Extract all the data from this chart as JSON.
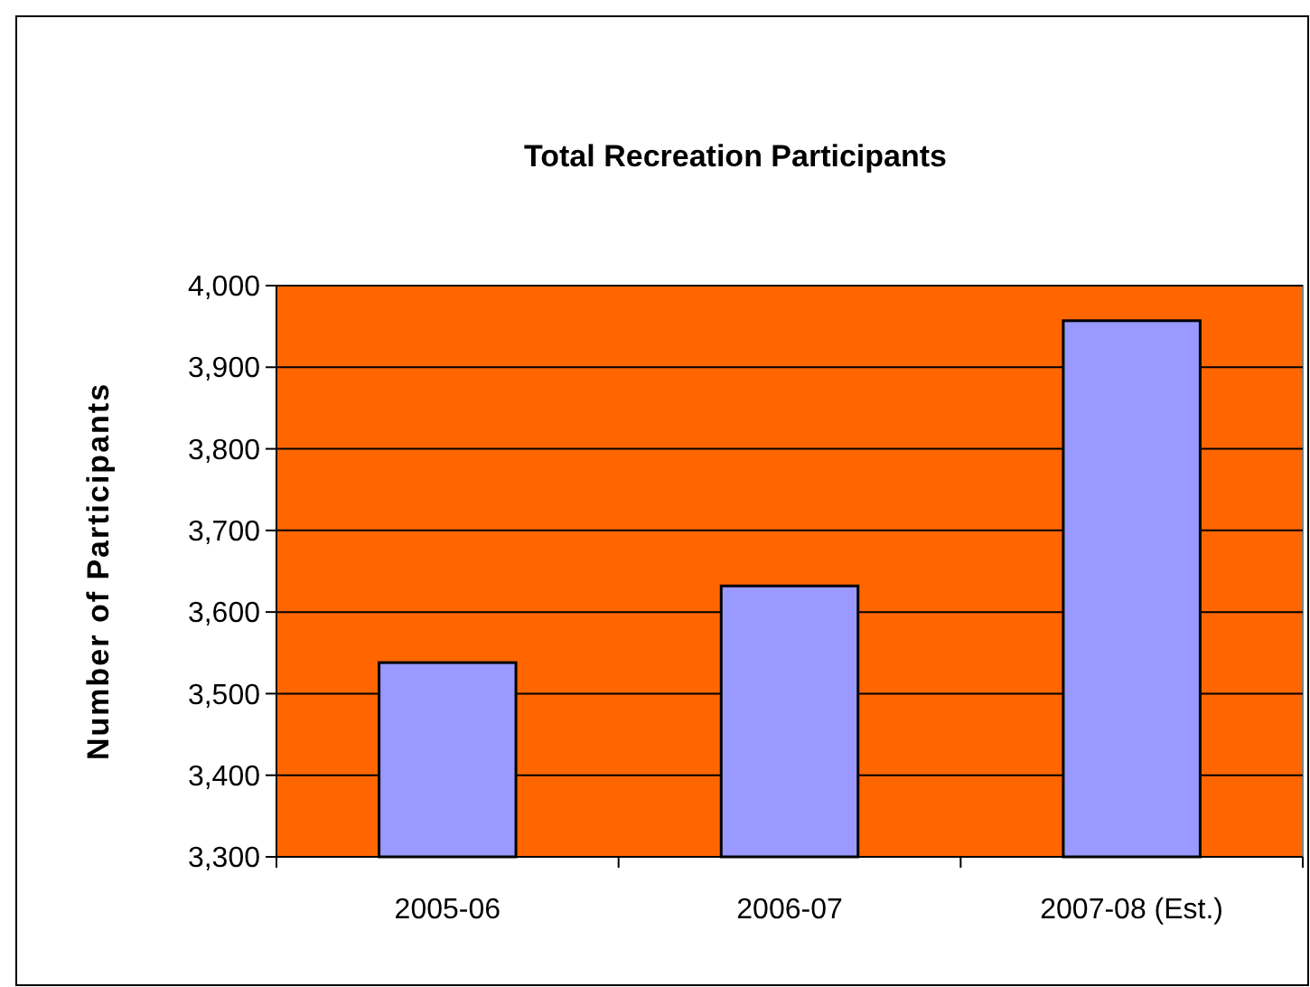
{
  "chart_data": {
    "type": "bar",
    "title": "Total Recreation Participants",
    "ylabel": "Number of Participants",
    "categories": [
      "2005-06",
      "2006-07",
      "2007-08 (Est.)"
    ],
    "series": [
      {
        "color": "#9999ff",
        "values": [
          3538,
          3632,
          3957
        ]
      }
    ],
    "ylim": [
      3300,
      4000
    ],
    "yticks": [
      {
        "value": 3300,
        "label": "3,300"
      },
      {
        "value": 3400,
        "label": "3,400"
      },
      {
        "value": 3500,
        "label": "3,500"
      },
      {
        "value": 3600,
        "label": "3,600"
      },
      {
        "value": 3700,
        "label": "3,700"
      },
      {
        "value": 3800,
        "label": "3,800"
      },
      {
        "value": 3900,
        "label": "3,900"
      },
      {
        "value": 4000,
        "label": "4,000"
      }
    ],
    "grid": "y"
  }
}
